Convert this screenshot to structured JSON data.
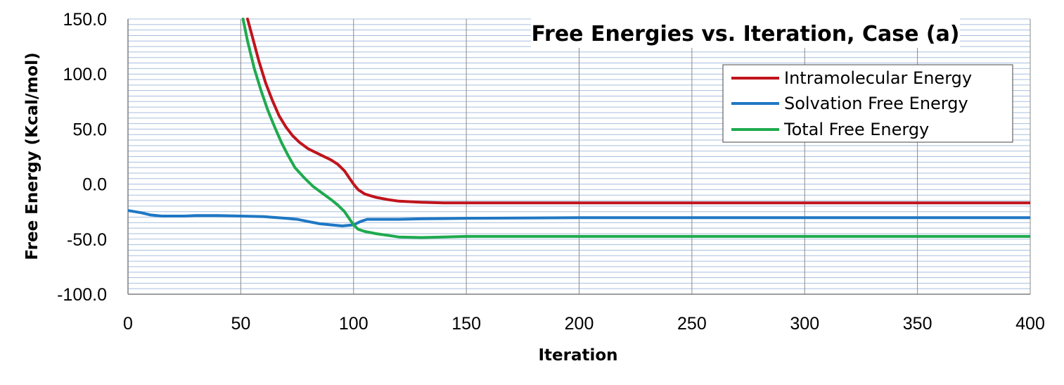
{
  "chart_data": {
    "type": "line",
    "title": "Free Energies vs. Iteration, Case (a)",
    "xlabel": "Iteration",
    "ylabel": "Free Energy (Kcal/mol)",
    "xlim": [
      0,
      400
    ],
    "ylim": [
      -100,
      150
    ],
    "x_ticks": [
      0,
      50,
      100,
      150,
      200,
      250,
      300,
      350,
      400
    ],
    "x_tick_labels": [
      "0",
      "50",
      "100",
      "150",
      "200",
      "250",
      "300",
      "350",
      "400"
    ],
    "y_ticks": [
      -100,
      -50,
      0,
      50,
      100,
      150
    ],
    "y_tick_labels": [
      "-100.0",
      "-50.0",
      "0.0",
      "50.0",
      "100.0",
      "150.0"
    ],
    "grid": true,
    "legend_position": "top-right",
    "series": [
      {
        "name": "Intramolecular Energy",
        "color": "#c0141c",
        "points": [
          [
            53,
            150
          ],
          [
            55,
            135
          ],
          [
            58,
            112
          ],
          [
            61,
            92
          ],
          [
            64,
            76
          ],
          [
            67,
            62
          ],
          [
            70,
            52
          ],
          [
            73,
            44
          ],
          [
            76,
            38
          ],
          [
            80,
            32
          ],
          [
            85,
            27
          ],
          [
            90,
            22
          ],
          [
            93,
            18
          ],
          [
            96,
            12
          ],
          [
            98,
            6
          ],
          [
            100,
            0
          ],
          [
            102,
            -5
          ],
          [
            105,
            -9
          ],
          [
            110,
            -12
          ],
          [
            115,
            -14
          ],
          [
            120,
            -15.5
          ],
          [
            130,
            -16.5
          ],
          [
            140,
            -17
          ],
          [
            150,
            -17
          ],
          [
            400,
            -17
          ]
        ]
      },
      {
        "name": "Solvation Free Energy",
        "color": "#1f77c4",
        "points": [
          [
            0,
            -24
          ],
          [
            3,
            -25
          ],
          [
            6,
            -26
          ],
          [
            10,
            -28
          ],
          [
            15,
            -29
          ],
          [
            20,
            -29
          ],
          [
            25,
            -29
          ],
          [
            30,
            -28.5
          ],
          [
            40,
            -28.5
          ],
          [
            50,
            -29
          ],
          [
            60,
            -29.5
          ],
          [
            70,
            -31
          ],
          [
            75,
            -32
          ],
          [
            80,
            -34
          ],
          [
            85,
            -36
          ],
          [
            90,
            -37
          ],
          [
            95,
            -38
          ],
          [
            100,
            -37
          ],
          [
            103,
            -34
          ],
          [
            106,
            -32
          ],
          [
            110,
            -32
          ],
          [
            120,
            -32
          ],
          [
            130,
            -31.5
          ],
          [
            150,
            -31
          ],
          [
            200,
            -30.5
          ],
          [
            250,
            -30.5
          ],
          [
            300,
            -30.5
          ],
          [
            400,
            -30.5
          ]
        ]
      },
      {
        "name": "Total Free Energy",
        "color": "#1faa4e",
        "points": [
          [
            51,
            150
          ],
          [
            53,
            130
          ],
          [
            56,
            105
          ],
          [
            59,
            85
          ],
          [
            62,
            67
          ],
          [
            65,
            52
          ],
          [
            68,
            38
          ],
          [
            71,
            26
          ],
          [
            74,
            15
          ],
          [
            78,
            6
          ],
          [
            82,
            -2
          ],
          [
            86,
            -8
          ],
          [
            90,
            -14
          ],
          [
            93,
            -19
          ],
          [
            96,
            -25
          ],
          [
            98,
            -31
          ],
          [
            100,
            -37
          ],
          [
            102,
            -41
          ],
          [
            105,
            -43
          ],
          [
            110,
            -45
          ],
          [
            115,
            -46.5
          ],
          [
            120,
            -48
          ],
          [
            130,
            -48.5
          ],
          [
            140,
            -48
          ],
          [
            150,
            -47.5
          ],
          [
            200,
            -47.5
          ],
          [
            250,
            -47.5
          ],
          [
            300,
            -47.5
          ],
          [
            400,
            -47.5
          ]
        ]
      }
    ]
  }
}
